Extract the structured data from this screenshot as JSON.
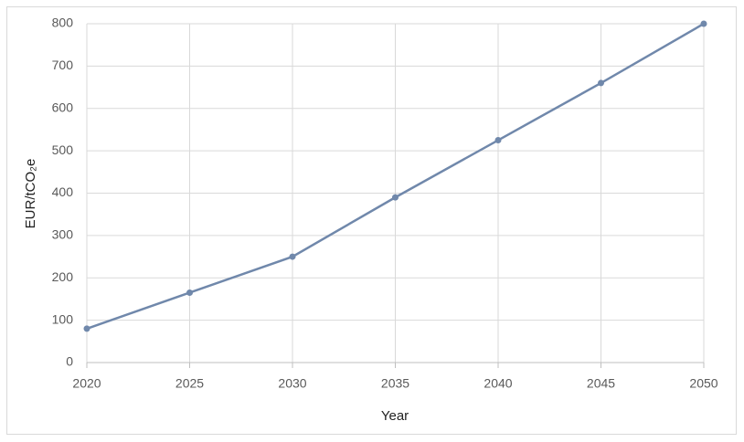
{
  "chart_data": {
    "type": "line",
    "x_label": "Year",
    "y_label": "EUR/tCO₂e",
    "x": [
      2020,
      2025,
      2030,
      2035,
      2040,
      2045,
      2050
    ],
    "series": [
      {
        "name": "EUR/tCO₂e",
        "color": "#7088ab",
        "values": [
          80,
          165,
          250,
          390,
          525,
          660,
          800
        ]
      }
    ],
    "xlim": [
      2020,
      2050
    ],
    "xticks": [
      2020,
      2025,
      2030,
      2035,
      2040,
      2045,
      2050
    ],
    "ylim": [
      0,
      800
    ],
    "yticks": [
      0,
      100,
      200,
      300,
      400,
      500,
      600,
      700,
      800
    ],
    "grid": true
  }
}
